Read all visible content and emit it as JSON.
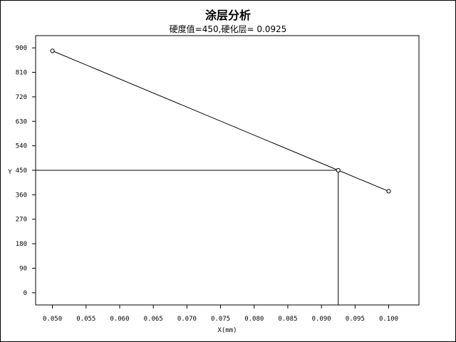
{
  "chart_data": {
    "type": "line",
    "title": "涂层分析",
    "subtitle": "硬度值=450,硬化层= 0.0925",
    "xlabel": "X(mm)",
    "ylabel": "Y",
    "xlim": [
      0.0475,
      0.1045
    ],
    "ylim": [
      -45,
      945
    ],
    "x_ticks": [
      "0.050",
      "0.055",
      "0.060",
      "0.065",
      "0.070",
      "0.075",
      "0.080",
      "0.085",
      "0.090",
      "0.095",
      "0.100"
    ],
    "y_ticks": [
      "0",
      "90",
      "180",
      "270",
      "360",
      "450",
      "540",
      "630",
      "720",
      "810",
      "900"
    ],
    "series": [
      {
        "x": [
          0.05,
          0.0925,
          0.1
        ],
        "y": [
          889,
          450,
          373
        ]
      }
    ],
    "reference": {
      "x": 0.0925,
      "y": 450
    },
    "colors": {
      "line": "#000000",
      "marker_fill": "#ffffff"
    }
  }
}
